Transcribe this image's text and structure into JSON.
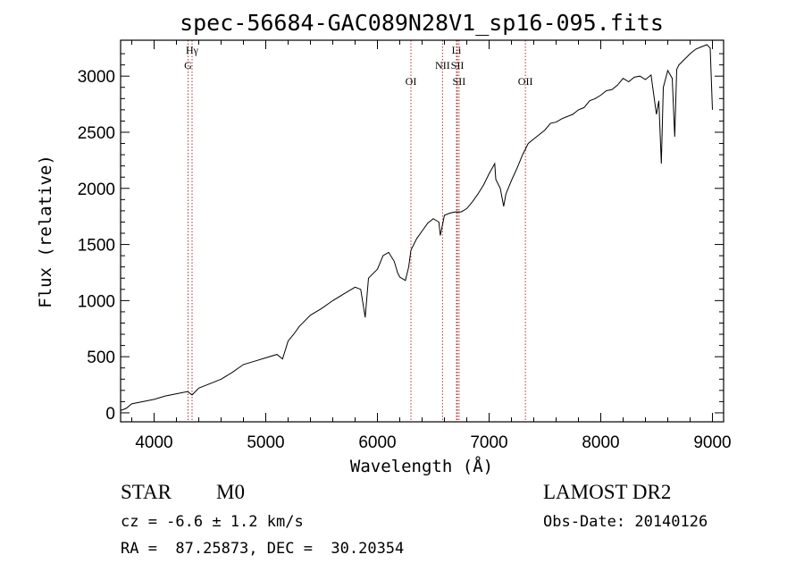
{
  "chart_data": {
    "type": "line",
    "title": "spec-56684-GAC089N28V1_sp16-095.fits",
    "xlabel": "Wavelength (Å)",
    "ylabel": "Flux (relative)",
    "xlim": [
      3700,
      9100
    ],
    "ylim": [
      -80,
      3320
    ],
    "x_ticks": [
      4000,
      5000,
      6000,
      7000,
      8000,
      9000
    ],
    "y_ticks": [
      0,
      500,
      1000,
      1500,
      2000,
      2500,
      3000
    ],
    "grid": false,
    "series": [
      {
        "color": "#000000",
        "x": [
          3700,
          3750,
          3800,
          3900,
          4000,
          4100,
          4200,
          4300,
          4340,
          4400,
          4500,
          4600,
          4700,
          4800,
          4900,
          5000,
          5100,
          5150,
          5200,
          5250,
          5300,
          5400,
          5500,
          5600,
          5700,
          5800,
          5850,
          5890,
          5920,
          6000,
          6050,
          6100,
          6150,
          6180,
          6200,
          6250,
          6280,
          6300,
          6350,
          6400,
          6450,
          6500,
          6550,
          6563,
          6600,
          6650,
          6700,
          6750,
          6800,
          6850,
          6900,
          6950,
          7000,
          7050,
          7060,
          7100,
          7130,
          7150,
          7200,
          7250,
          7300,
          7350,
          7400,
          7450,
          7500,
          7550,
          7600,
          7650,
          7700,
          7750,
          7800,
          7850,
          7900,
          7950,
          8000,
          8050,
          8100,
          8150,
          8200,
          8250,
          8300,
          8350,
          8400,
          8450,
          8498,
          8520,
          8542,
          8560,
          8600,
          8640,
          8662,
          8680,
          8700,
          8750,
          8800,
          8850,
          8900,
          8950,
          8980,
          9000
        ],
        "values": [
          20,
          40,
          80,
          100,
          120,
          150,
          170,
          190,
          160,
          220,
          260,
          300,
          360,
          430,
          460,
          490,
          520,
          480,
          640,
          700,
          770,
          870,
          930,
          1000,
          1060,
          1120,
          1100,
          850,
          1200,
          1280,
          1400,
          1430,
          1350,
          1250,
          1210,
          1180,
          1300,
          1450,
          1550,
          1620,
          1690,
          1730,
          1700,
          1580,
          1760,
          1780,
          1790,
          1790,
          1820,
          1880,
          1950,
          2030,
          2130,
          2220,
          2080,
          2000,
          1840,
          1950,
          2070,
          2180,
          2300,
          2400,
          2440,
          2480,
          2520,
          2580,
          2590,
          2620,
          2640,
          2660,
          2700,
          2720,
          2780,
          2800,
          2830,
          2870,
          2880,
          2920,
          2980,
          2950,
          2990,
          3000,
          2970,
          3010,
          2660,
          2780,
          2220,
          2900,
          3050,
          2980,
          2460,
          3060,
          3100,
          3150,
          3200,
          3240,
          3260,
          3280,
          3250,
          2700
        ]
      }
    ],
    "annotations": [
      {
        "label": "Hγ",
        "x": 4340,
        "row": 1
      },
      {
        "label": "G",
        "x": 4304,
        "row": 2
      },
      {
        "label": "OI",
        "x": 6300,
        "row": 3
      },
      {
        "label": "NII",
        "x": 6583,
        "row": 2
      },
      {
        "label": "Li",
        "x": 6708,
        "row": 1
      },
      {
        "label": "SII",
        "x": 6716,
        "row": 2
      },
      {
        "label": "SII",
        "x": 6731,
        "row": 3
      },
      {
        "label": "OII",
        "x": 7325,
        "row": 3
      }
    ],
    "marker_lines": [
      4304,
      4340,
      6300,
      6583,
      6708,
      6716,
      6731,
      7325
    ],
    "marker_color": "#b03030"
  },
  "info": {
    "class": "STAR",
    "subclass": "M0",
    "cz": "cz = -6.6 ± 1.2 km/s",
    "radec": "RA =  87.25873, DEC =  30.20354",
    "survey": "LAMOST DR2",
    "obsdate": "Obs-Date: 20140126"
  }
}
